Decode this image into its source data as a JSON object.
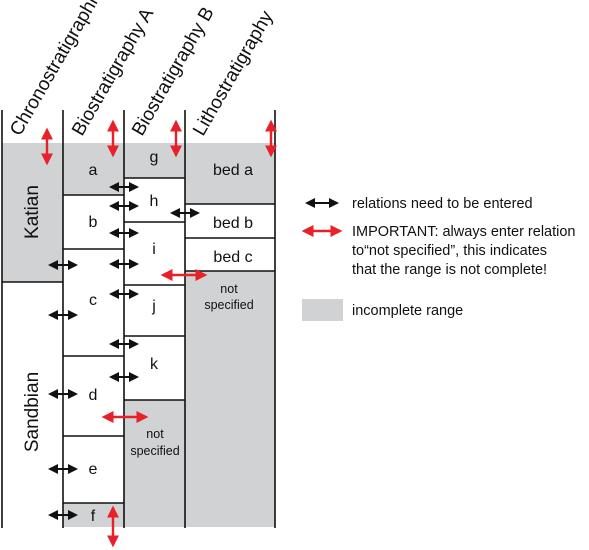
{
  "headers": {
    "chrono": "Chronostratigraphic",
    "bioA": "Biostratigraphy A",
    "bioB": "Biostratigraphy B",
    "litho": "Lithostratigraphy"
  },
  "chrono_units": [
    "Katian",
    "Sandbian"
  ],
  "bioA_units": [
    "a",
    "b",
    "c",
    "d",
    "e",
    "f"
  ],
  "bioB_units": [
    "g",
    "h",
    "i",
    "j",
    "k"
  ],
  "bioB_not_specified": [
    "not",
    "specified"
  ],
  "litho_units": [
    "bed a",
    "bed b",
    "bed c"
  ],
  "litho_not_specified": [
    "not",
    "specified"
  ],
  "legend": {
    "black_arrow": "relations need to be entered",
    "red_arrow": [
      "IMPORTANT: always enter relation",
      "to“not specified”, this indicates",
      "that the range is not complete!"
    ],
    "gray_box": "incomplete range"
  },
  "colors": {
    "incomplete_gray": "#d1d2d4",
    "red_arrow": "#e8202a",
    "black_arrow": "#111111",
    "line": "#111111"
  }
}
